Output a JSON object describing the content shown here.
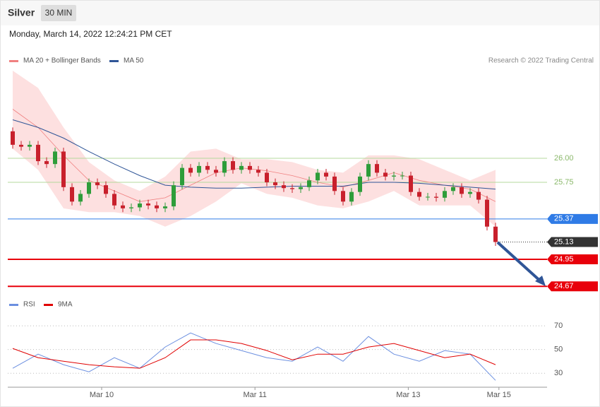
{
  "header": {
    "instrument": "Silver",
    "interval": "30 MIN",
    "timestamp": "Monday, March 14, 2022 12:24:21 PM CET",
    "credit": "Research © 2022 Trading Central"
  },
  "chart_data": [
    {
      "type": "candlestick",
      "x": [
        0,
        1,
        2,
        3,
        4,
        5,
        6,
        7,
        8,
        9,
        10,
        11,
        12,
        13,
        14,
        15,
        16,
        17,
        18,
        19,
        20,
        21,
        22,
        23,
        24,
        25,
        26,
        27,
        28,
        29,
        30,
        31,
        32,
        33,
        34,
        35,
        36,
        37,
        38,
        39,
        40,
        41,
        42,
        43,
        44,
        45,
        46,
        47,
        48,
        49,
        50,
        51,
        52,
        53,
        54,
        55,
        56,
        57
      ],
      "open": [
        26.28,
        26.14,
        26.12,
        26.14,
        25.97,
        25.94,
        26.07,
        25.7,
        25.55,
        25.63,
        25.75,
        25.72,
        25.63,
        25.51,
        25.48,
        25.49,
        25.53,
        25.51,
        25.48,
        25.5,
        25.72,
        25.9,
        25.85,
        25.92,
        25.88,
        25.85,
        25.97,
        25.88,
        25.92,
        25.88,
        25.85,
        25.75,
        25.72,
        25.69,
        25.68,
        25.7,
        25.77,
        25.85,
        25.81,
        25.66,
        25.55,
        25.65,
        25.81,
        25.94,
        25.85,
        25.81,
        25.82,
        25.82,
        25.65,
        25.6,
        25.6,
        25.59,
        25.66,
        25.7,
        25.63,
        25.65,
        25.57,
        25.29
      ],
      "high": [
        26.32,
        26.18,
        26.18,
        26.18,
        26.01,
        26.11,
        26.11,
        25.74,
        25.67,
        25.79,
        25.79,
        25.76,
        25.67,
        25.55,
        25.53,
        25.57,
        25.57,
        25.55,
        25.54,
        25.76,
        25.94,
        25.94,
        25.96,
        25.96,
        25.92,
        26.01,
        26.01,
        25.96,
        25.96,
        25.92,
        25.89,
        25.79,
        25.76,
        25.73,
        25.74,
        25.81,
        25.89,
        25.89,
        25.85,
        25.7,
        25.69,
        25.85,
        25.98,
        25.98,
        25.89,
        25.86,
        25.86,
        25.86,
        25.69,
        25.64,
        25.64,
        25.7,
        25.74,
        25.74,
        25.69,
        25.69,
        25.61,
        25.33
      ],
      "low": [
        26.1,
        26.08,
        26.08,
        25.93,
        25.9,
        25.9,
        25.66,
        25.51,
        25.51,
        25.59,
        25.68,
        25.59,
        25.47,
        25.44,
        25.44,
        25.45,
        25.47,
        25.44,
        25.44,
        25.46,
        25.68,
        25.81,
        25.81,
        25.84,
        25.81,
        25.81,
        25.84,
        25.84,
        25.84,
        25.81,
        25.71,
        25.68,
        25.65,
        25.64,
        25.64,
        25.66,
        25.73,
        25.77,
        25.62,
        25.51,
        25.51,
        25.61,
        25.77,
        25.81,
        25.77,
        25.77,
        25.78,
        25.61,
        25.56,
        25.56,
        25.55,
        25.55,
        25.62,
        25.59,
        25.59,
        25.53,
        25.25,
        25.09
      ],
      "close": [
        26.14,
        26.12,
        26.14,
        25.97,
        25.94,
        26.07,
        25.7,
        25.55,
        25.63,
        25.75,
        25.72,
        25.63,
        25.51,
        25.48,
        25.49,
        25.53,
        25.51,
        25.48,
        25.5,
        25.72,
        25.9,
        25.85,
        25.92,
        25.88,
        25.85,
        25.97,
        25.88,
        25.92,
        25.88,
        25.85,
        25.75,
        25.72,
        25.69,
        25.68,
        25.7,
        25.77,
        25.85,
        25.81,
        25.66,
        25.55,
        25.65,
        25.81,
        25.94,
        25.85,
        25.81,
        25.82,
        25.82,
        25.65,
        25.6,
        25.6,
        25.59,
        25.66,
        25.7,
        25.63,
        25.65,
        25.57,
        25.29,
        25.13
      ],
      "up_color": "#2e9d3a",
      "down_color": "#c8202c",
      "indicators": {
        "x": [
          0,
          3,
          6,
          9,
          12,
          15,
          18,
          21,
          24,
          27,
          30,
          33,
          36,
          39,
          42,
          45,
          48,
          51,
          54,
          57
        ],
        "series": [
          {
            "name": "MA 20 + Bollinger Bands",
            "color": "#f08080",
            "band_color": "#fde0e0",
            "values": [
              26.51,
              26.32,
              26.03,
              25.77,
              25.66,
              25.55,
              25.59,
              25.72,
              25.85,
              25.9,
              25.87,
              25.82,
              25.75,
              25.7,
              25.77,
              25.85,
              25.77,
              25.72,
              25.68,
              25.55
            ],
            "upper": [
              26.91,
              26.73,
              26.32,
              25.96,
              25.77,
              25.66,
              25.81,
              26.07,
              26.1,
              25.99,
              25.99,
              25.96,
              25.88,
              25.85,
              26.03,
              26.03,
              25.99,
              25.88,
              25.77,
              25.88
            ],
            "lower": [
              26.1,
              25.88,
              25.48,
              25.44,
              25.44,
              25.4,
              25.29,
              25.4,
              25.55,
              25.74,
              25.63,
              25.59,
              25.51,
              25.48,
              25.55,
              25.66,
              25.51,
              25.51,
              25.51,
              25.29
            ]
          },
          {
            "name": "MA 50",
            "color": "#2f5597",
            "values": [
              26.4,
              26.32,
              26.21,
              26.07,
              25.94,
              25.82,
              25.72,
              25.7,
              25.69,
              25.69,
              25.7,
              25.71,
              25.71,
              25.71,
              25.75,
              25.75,
              25.74,
              25.72,
              25.7,
              25.68
            ]
          }
        ]
      },
      "levels": [
        {
          "value": 26.0,
          "label": "26.00",
          "color": "#b5d99c",
          "style": "line",
          "box": false
        },
        {
          "value": 25.75,
          "label": "25.75",
          "color": "#b5d99c",
          "style": "line",
          "box": false
        },
        {
          "value": 25.37,
          "label": "25.37",
          "color": "#2f7be6",
          "style": "line",
          "box": true
        },
        {
          "value": 25.13,
          "label": "25.13",
          "color": "#333333",
          "style": "dotted",
          "box": true
        },
        {
          "value": 24.95,
          "label": "24.95",
          "color": "#e8000b",
          "style": "thick",
          "box": true
        },
        {
          "value": 24.67,
          "label": "24.67",
          "color": "#e8000b",
          "style": "thick",
          "box": true
        }
      ],
      "xlim": [
        -0.5,
        57.5
      ],
      "ylim": [
        24.62,
        26.91
      ],
      "xticks": [
        {
          "value": 10.5,
          "label": "Mar 10"
        },
        {
          "value": 28.6,
          "label": "Mar 11"
        },
        {
          "value": 46.7,
          "label": "Mar 13"
        },
        {
          "value": 57.4,
          "label": "Mar 15"
        }
      ]
    },
    {
      "type": "line",
      "x": [
        0,
        3,
        6,
        9,
        12,
        15,
        18,
        21,
        24,
        27,
        30,
        33,
        36,
        39,
        42,
        45,
        48,
        51,
        54,
        57
      ],
      "series": [
        {
          "name": "RSI",
          "color": "#6b8fe0",
          "values": [
            34.2,
            46.1,
            37.2,
            31.2,
            43.1,
            34.2,
            52.1,
            64.0,
            55.1,
            49.1,
            43.1,
            40.1,
            52.1,
            40.1,
            61.0,
            46.1,
            40.1,
            49.1,
            46.1,
            24.0
          ]
        },
        {
          "name": "9MA",
          "color": "#e00000",
          "values": [
            50.9,
            43.1,
            40.1,
            37.2,
            35.4,
            34.2,
            43.1,
            58.1,
            58.1,
            55.1,
            49.1,
            41.3,
            46.1,
            46.1,
            52.1,
            55.1,
            49.1,
            43.1,
            46.1,
            37.2
          ]
        }
      ],
      "xlim": [
        -0.5,
        57.5
      ],
      "ylim": [
        20,
        76
      ],
      "yticks": [
        30,
        50,
        70
      ],
      "grid": true
    }
  ]
}
